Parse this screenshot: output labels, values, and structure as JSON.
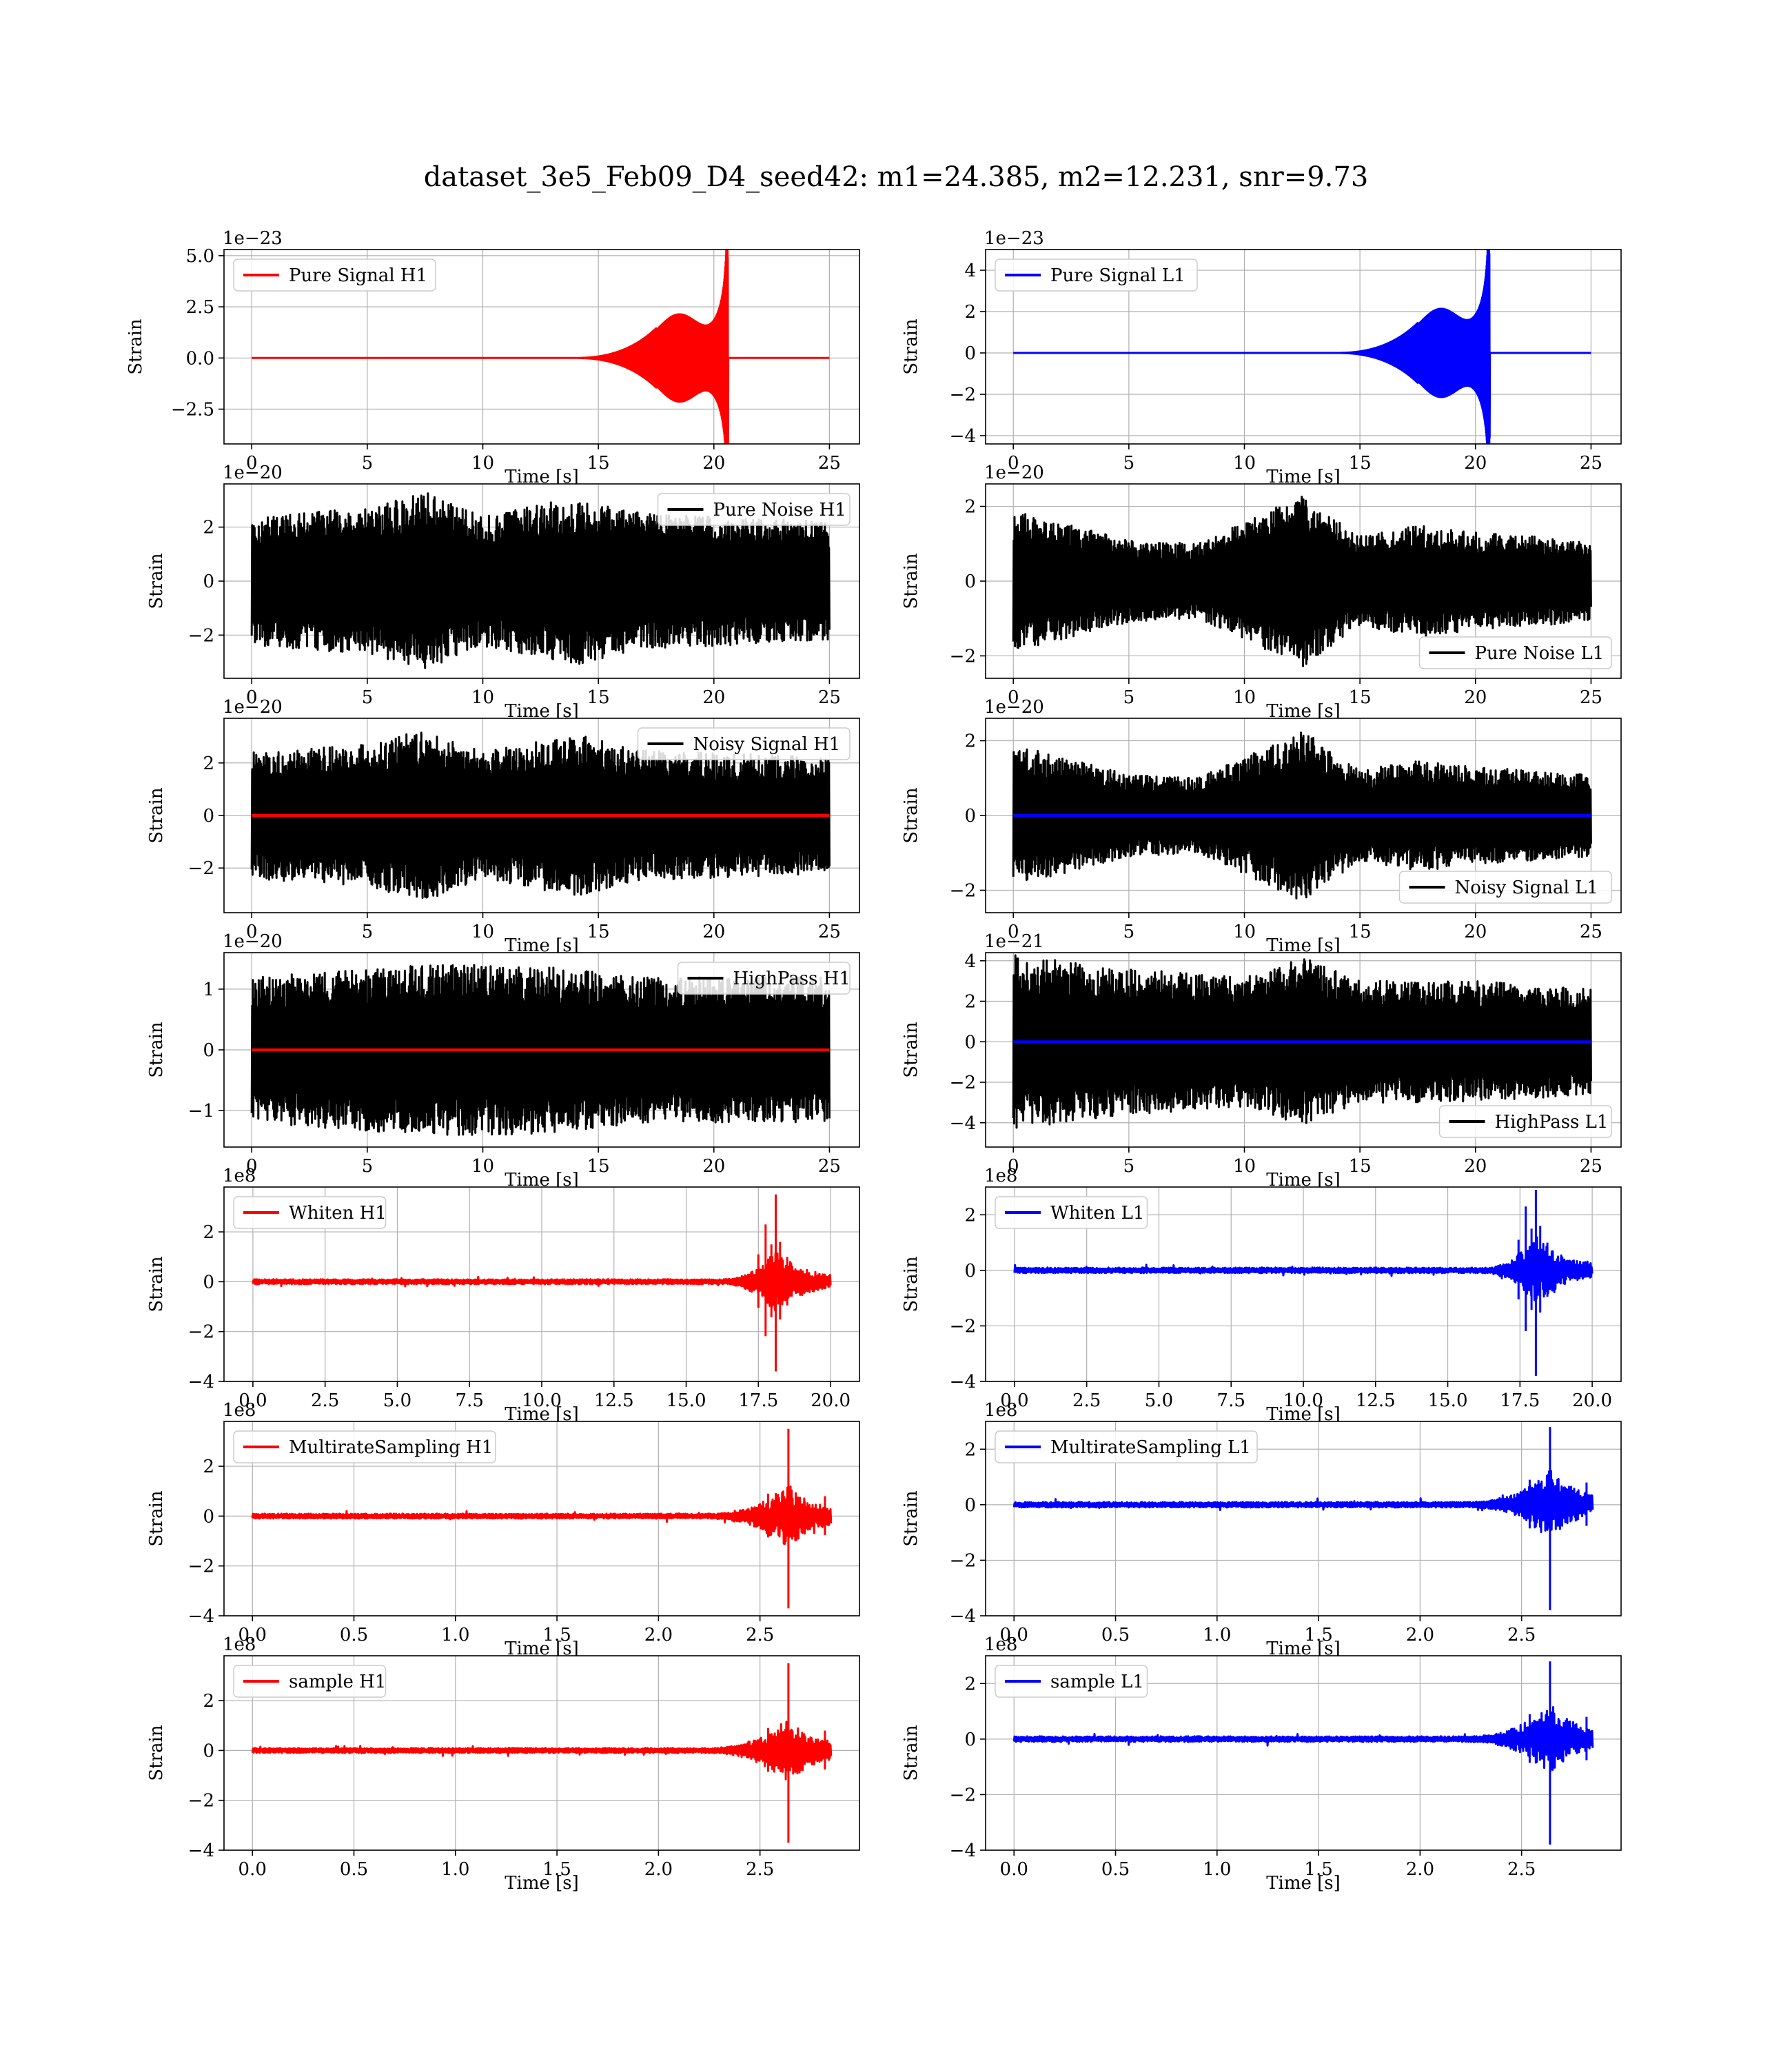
{
  "title": "dataset_3e5_Feb09_D4_seed42: m1=24.385, m2=12.231, snr=9.73",
  "colors": {
    "H1": "#ff0000",
    "L1": "#0000ff",
    "noise": "#000000",
    "grid": "#b0b0b0"
  },
  "chart_data": [
    {
      "type": "line",
      "detector": "H1",
      "legend": "Pure Signal H1",
      "legend_loc": "upper left",
      "xlabel": "Time [s]",
      "ylabel": "Strain",
      "offset": "1e−23",
      "xlim": [
        -1.2,
        26.3
      ],
      "ylim": [
        -4.2,
        5.3
      ],
      "xticks": [
        0,
        5,
        10,
        15,
        20,
        25
      ],
      "xtick_labels": [
        "0",
        "5",
        "10",
        "15",
        "20",
        "25"
      ],
      "yticks": [
        -2.5,
        0,
        2.5,
        5
      ],
      "ytick_labels": [
        "−2.5",
        "0.0",
        "2.5",
        "5.0"
      ],
      "series": [
        {
          "name": "Pure Signal H1",
          "color": "#ff0000",
          "kind": "chirp",
          "t_range": [
            0,
            25
          ],
          "t_merger": 20.6,
          "peak": 4.9,
          "trough": -4.5
        }
      ]
    },
    {
      "type": "line",
      "detector": "L1",
      "legend": "Pure Signal L1",
      "legend_loc": "upper left",
      "xlabel": "Time [s]",
      "ylabel": "Strain",
      "offset": "1e−23",
      "xlim": [
        -1.2,
        26.3
      ],
      "ylim": [
        -4.4,
        5.0
      ],
      "xticks": [
        0,
        5,
        10,
        15,
        20,
        25
      ],
      "xtick_labels": [
        "0",
        "5",
        "10",
        "15",
        "20",
        "25"
      ],
      "yticks": [
        -4,
        -2,
        0,
        2,
        4
      ],
      "ytick_labels": [
        "−4",
        "−2",
        "0",
        "2",
        "4"
      ],
      "series": [
        {
          "name": "Pure Signal L1",
          "color": "#0000ff",
          "kind": "chirp",
          "t_range": [
            0,
            25
          ],
          "t_merger": 20.6,
          "peak": 4.8,
          "trough": -4.1
        }
      ]
    },
    {
      "type": "line",
      "detector": "H1",
      "legend": "Pure Noise H1",
      "legend_loc": "upper right",
      "xlabel": "Time [s]",
      "ylabel": "Strain",
      "offset": "1e−20",
      "xlim": [
        -1.2,
        26.3
      ],
      "ylim": [
        -3.6,
        3.6
      ],
      "xticks": [
        0,
        5,
        10,
        15,
        20,
        25
      ],
      "xtick_labels": [
        "0",
        "5",
        "10",
        "15",
        "20",
        "25"
      ],
      "yticks": [
        -2,
        0,
        2
      ],
      "ytick_labels": [
        "−2",
        "0",
        "2"
      ],
      "series": [
        {
          "name": "Pure Noise H1",
          "color": "#000000",
          "kind": "noise",
          "t_range": [
            0,
            25
          ],
          "envelope": [
            [
              0,
              2.4
            ],
            [
              5,
              2.7
            ],
            [
              7.5,
              3.3
            ],
            [
              10,
              2.4
            ],
            [
              14,
              3.1
            ],
            [
              17,
              2.5
            ],
            [
              20,
              2.4
            ],
            [
              25,
              2.2
            ]
          ]
        }
      ]
    },
    {
      "type": "line",
      "detector": "L1",
      "legend": "Pure Noise L1",
      "legend_loc": "lower right",
      "xlabel": "Time [s]",
      "ylabel": "Strain",
      "offset": "1e−20",
      "xlim": [
        -1.2,
        26.3
      ],
      "ylim": [
        -2.6,
        2.6
      ],
      "xticks": [
        0,
        5,
        10,
        15,
        20,
        25
      ],
      "xtick_labels": [
        "0",
        "5",
        "10",
        "15",
        "20",
        "25"
      ],
      "yticks": [
        -2,
        0,
        2
      ],
      "ytick_labels": [
        "−2",
        "0",
        "2"
      ],
      "series": [
        {
          "name": "Pure Noise L1",
          "color": "#000000",
          "kind": "noise",
          "t_range": [
            0,
            25
          ],
          "envelope": [
            [
              0,
              1.9
            ],
            [
              5,
              1.1
            ],
            [
              8,
              1.0
            ],
            [
              12.5,
              2.3
            ],
            [
              15,
              1.2
            ],
            [
              17.5,
              1.5
            ],
            [
              20,
              1.3
            ],
            [
              25,
              1.1
            ]
          ]
        }
      ]
    },
    {
      "type": "line",
      "detector": "H1",
      "legend": "Noisy Signal H1",
      "legend_loc": "upper right",
      "xlabel": "Time [s]",
      "ylabel": "Strain",
      "offset": "1e−20",
      "xlim": [
        -1.2,
        26.3
      ],
      "ylim": [
        -3.7,
        3.7
      ],
      "xticks": [
        0,
        5,
        10,
        15,
        20,
        25
      ],
      "xtick_labels": [
        "0",
        "5",
        "10",
        "15",
        "20",
        "25"
      ],
      "yticks": [
        -2,
        0,
        2
      ],
      "ytick_labels": [
        "−2",
        "0",
        "2"
      ],
      "series": [
        {
          "name": "Noisy Signal H1",
          "color": "#000000",
          "kind": "noise",
          "t_range": [
            0,
            25
          ],
          "envelope": [
            [
              0,
              2.4
            ],
            [
              5,
              2.7
            ],
            [
              7.5,
              3.3
            ],
            [
              10,
              2.4
            ],
            [
              14,
              3.1
            ],
            [
              17,
              2.5
            ],
            [
              20,
              2.4
            ],
            [
              25,
              2.2
            ]
          ]
        },
        {
          "name": "Pure Signal H1",
          "color": "#ff0000",
          "kind": "flat",
          "t_range": [
            0,
            25
          ]
        }
      ]
    },
    {
      "type": "line",
      "detector": "L1",
      "legend": "Noisy Signal L1",
      "legend_loc": "lower right",
      "xlabel": "Time [s]",
      "ylabel": "Strain",
      "offset": "1e−20",
      "xlim": [
        -1.2,
        26.3
      ],
      "ylim": [
        -2.6,
        2.6
      ],
      "xticks": [
        0,
        5,
        10,
        15,
        20,
        25
      ],
      "xtick_labels": [
        "0",
        "5",
        "10",
        "15",
        "20",
        "25"
      ],
      "yticks": [
        -2,
        0,
        2
      ],
      "ytick_labels": [
        "−2",
        "0",
        "2"
      ],
      "series": [
        {
          "name": "Noisy Signal L1",
          "color": "#000000",
          "kind": "noise",
          "t_range": [
            0,
            25
          ],
          "envelope": [
            [
              0,
              1.9
            ],
            [
              5,
              1.1
            ],
            [
              8,
              1.0
            ],
            [
              12.5,
              2.3
            ],
            [
              15,
              1.2
            ],
            [
              17.5,
              1.5
            ],
            [
              20,
              1.3
            ],
            [
              25,
              1.1
            ]
          ]
        },
        {
          "name": "Pure Signal L1",
          "color": "#0000ff",
          "kind": "flat",
          "t_range": [
            0,
            25
          ]
        }
      ]
    },
    {
      "type": "line",
      "detector": "H1",
      "legend": "HighPass H1",
      "legend_loc": "upper right",
      "xlabel": "Time [s]",
      "ylabel": "Strain",
      "offset": "1e−20",
      "xlim": [
        -1.2,
        26.3
      ],
      "ylim": [
        -1.6,
        1.6
      ],
      "xticks": [
        0,
        5,
        10,
        15,
        20,
        25
      ],
      "xtick_labels": [
        "0",
        "5",
        "10",
        "15",
        "20",
        "25"
      ],
      "yticks": [
        -1,
        0,
        1
      ],
      "ytick_labels": [
        "−1",
        "0",
        "1"
      ],
      "series": [
        {
          "name": "HighPass H1",
          "color": "#000000",
          "kind": "noise",
          "t_range": [
            0,
            25
          ],
          "envelope": [
            [
              0,
              1.2
            ],
            [
              7.5,
              1.4
            ],
            [
              12,
              1.4
            ],
            [
              17,
              1.2
            ],
            [
              25,
              1.2
            ]
          ]
        },
        {
          "name": "Pure Signal H1",
          "color": "#ff0000",
          "kind": "flat",
          "t_range": [
            0,
            25
          ]
        }
      ]
    },
    {
      "type": "line",
      "detector": "L1",
      "legend": "HighPass L1",
      "legend_loc": "lower right",
      "xlabel": "Time [s]",
      "ylabel": "Strain",
      "offset": "1e−21",
      "xlim": [
        -1.2,
        26.3
      ],
      "ylim": [
        -5.2,
        4.4
      ],
      "xticks": [
        0,
        5,
        10,
        15,
        20,
        25
      ],
      "xtick_labels": [
        "0",
        "5",
        "10",
        "15",
        "20",
        "25"
      ],
      "yticks": [
        -4,
        -2,
        0,
        2,
        4
      ],
      "ytick_labels": [
        "−4",
        "−2",
        "0",
        "2",
        "4"
      ],
      "series": [
        {
          "name": "HighPass L1",
          "color": "#000000",
          "kind": "noise",
          "t_range": [
            0,
            25
          ],
          "envelope": [
            [
              0,
              4.3
            ],
            [
              5,
              3.6
            ],
            [
              10,
              3.2
            ],
            [
              12.5,
              4.2
            ],
            [
              15,
              3.0
            ],
            [
              20,
              3.0
            ],
            [
              25,
              2.6
            ]
          ]
        },
        {
          "name": "Pure Signal L1",
          "color": "#0000ff",
          "kind": "flat",
          "t_range": [
            0,
            25
          ]
        }
      ]
    },
    {
      "type": "line",
      "detector": "H1",
      "legend": "Whiten H1",
      "legend_loc": "upper left",
      "xlabel": "Time [s]",
      "ylabel": "Strain",
      "offset": "1e8",
      "xlim": [
        -1.0,
        21.0
      ],
      "ylim": [
        -4.0,
        3.8
      ],
      "xticks": [
        0,
        2.5,
        5,
        7.5,
        10,
        12.5,
        15,
        17.5,
        20
      ],
      "xtick_labels": [
        "0.0",
        "2.5",
        "5.0",
        "7.5",
        "10.0",
        "12.5",
        "15.0",
        "17.5",
        "20.0"
      ],
      "yticks": [
        -4,
        -2,
        0,
        2
      ],
      "ytick_labels": [
        "−4",
        "−2",
        "0",
        "2"
      ],
      "series": [
        {
          "name": "Whiten H1",
          "color": "#ff0000",
          "kind": "whiten",
          "t_range": [
            0,
            20
          ],
          "t_peak": 18.1,
          "peak": 3.5,
          "trough": -3.6
        }
      ]
    },
    {
      "type": "line",
      "detector": "L1",
      "legend": "Whiten L1",
      "legend_loc": "upper left",
      "xlabel": "Time [s]",
      "ylabel": "Strain",
      "offset": "1e8",
      "xlim": [
        -1.0,
        21.0
      ],
      "ylim": [
        -4.0,
        3.0
      ],
      "xticks": [
        0,
        2.5,
        5,
        7.5,
        10,
        12.5,
        15,
        17.5,
        20
      ],
      "xtick_labels": [
        "0.0",
        "2.5",
        "5.0",
        "7.5",
        "10.0",
        "12.5",
        "15.0",
        "17.5",
        "20.0"
      ],
      "yticks": [
        -4,
        -2,
        0,
        2
      ],
      "ytick_labels": [
        "−4",
        "−2",
        "0",
        "2"
      ],
      "series": [
        {
          "name": "Whiten L1",
          "color": "#0000ff",
          "kind": "whiten",
          "t_range": [
            0,
            20
          ],
          "t_peak": 18.05,
          "peak": 2.9,
          "trough": -3.8
        }
      ]
    },
    {
      "type": "line",
      "detector": "H1",
      "legend": "MultirateSampling H1",
      "legend_loc": "upper left",
      "xlabel": "Time [s]",
      "ylabel": "Strain",
      "offset": "1e8",
      "xlim": [
        -0.14,
        2.99
      ],
      "ylim": [
        -4.0,
        3.8
      ],
      "xticks": [
        0,
        0.5,
        1,
        1.5,
        2,
        2.5
      ],
      "xtick_labels": [
        "0.0",
        "0.5",
        "1.0",
        "1.5",
        "2.0",
        "2.5"
      ],
      "yticks": [
        -4,
        -2,
        0,
        2
      ],
      "ytick_labels": [
        "−4",
        "−2",
        "0",
        "2"
      ],
      "series": [
        {
          "name": "MultirateSampling H1",
          "color": "#ff0000",
          "kind": "burst",
          "t_range": [
            0,
            2.85
          ],
          "t_peak": 2.64,
          "peak": 3.5,
          "trough": -3.7
        }
      ]
    },
    {
      "type": "line",
      "detector": "L1",
      "legend": "MultirateSampling L1",
      "legend_loc": "upper left",
      "xlabel": "Time [s]",
      "ylabel": "Strain",
      "offset": "1e8",
      "xlim": [
        -0.14,
        2.99
      ],
      "ylim": [
        -4.0,
        3.0
      ],
      "xticks": [
        0,
        0.5,
        1,
        1.5,
        2,
        2.5
      ],
      "xtick_labels": [
        "0.0",
        "0.5",
        "1.0",
        "1.5",
        "2.0",
        "2.5"
      ],
      "yticks": [
        -4,
        -2,
        0,
        2
      ],
      "ytick_labels": [
        "−4",
        "−2",
        "0",
        "2"
      ],
      "series": [
        {
          "name": "MultirateSampling L1",
          "color": "#0000ff",
          "kind": "burst",
          "t_range": [
            0,
            2.85
          ],
          "t_peak": 2.64,
          "peak": 2.8,
          "trough": -3.8
        }
      ]
    },
    {
      "type": "line",
      "detector": "H1",
      "legend": "sample H1",
      "legend_loc": "upper left",
      "xlabel": "Time [s]",
      "ylabel": "Strain",
      "offset": "1e8",
      "xlim": [
        -0.14,
        2.99
      ],
      "ylim": [
        -4.0,
        3.8
      ],
      "xticks": [
        0,
        0.5,
        1,
        1.5,
        2,
        2.5
      ],
      "xtick_labels": [
        "0.0",
        "0.5",
        "1.0",
        "1.5",
        "2.0",
        "2.5"
      ],
      "yticks": [
        -4,
        -2,
        0,
        2
      ],
      "ytick_labels": [
        "−4",
        "−2",
        "0",
        "2"
      ],
      "series": [
        {
          "name": "sample H1",
          "color": "#ff0000",
          "kind": "burst",
          "t_range": [
            0,
            2.85
          ],
          "t_peak": 2.64,
          "peak": 3.5,
          "trough": -3.7
        }
      ]
    },
    {
      "type": "line",
      "detector": "L1",
      "legend": "sample L1",
      "legend_loc": "upper left",
      "xlabel": "Time [s]",
      "ylabel": "Strain",
      "offset": "1e8",
      "xlim": [
        -0.14,
        2.99
      ],
      "ylim": [
        -4.0,
        3.0
      ],
      "xticks": [
        0,
        0.5,
        1,
        1.5,
        2,
        2.5
      ],
      "xtick_labels": [
        "0.0",
        "0.5",
        "1.0",
        "1.5",
        "2.0",
        "2.5"
      ],
      "yticks": [
        -4,
        -2,
        0,
        2
      ],
      "ytick_labels": [
        "−4",
        "−2",
        "0",
        "2"
      ],
      "series": [
        {
          "name": "sample L1",
          "color": "#0000ff",
          "kind": "burst",
          "t_range": [
            0,
            2.85
          ],
          "t_peak": 2.64,
          "peak": 2.8,
          "trough": -3.8
        }
      ]
    }
  ]
}
